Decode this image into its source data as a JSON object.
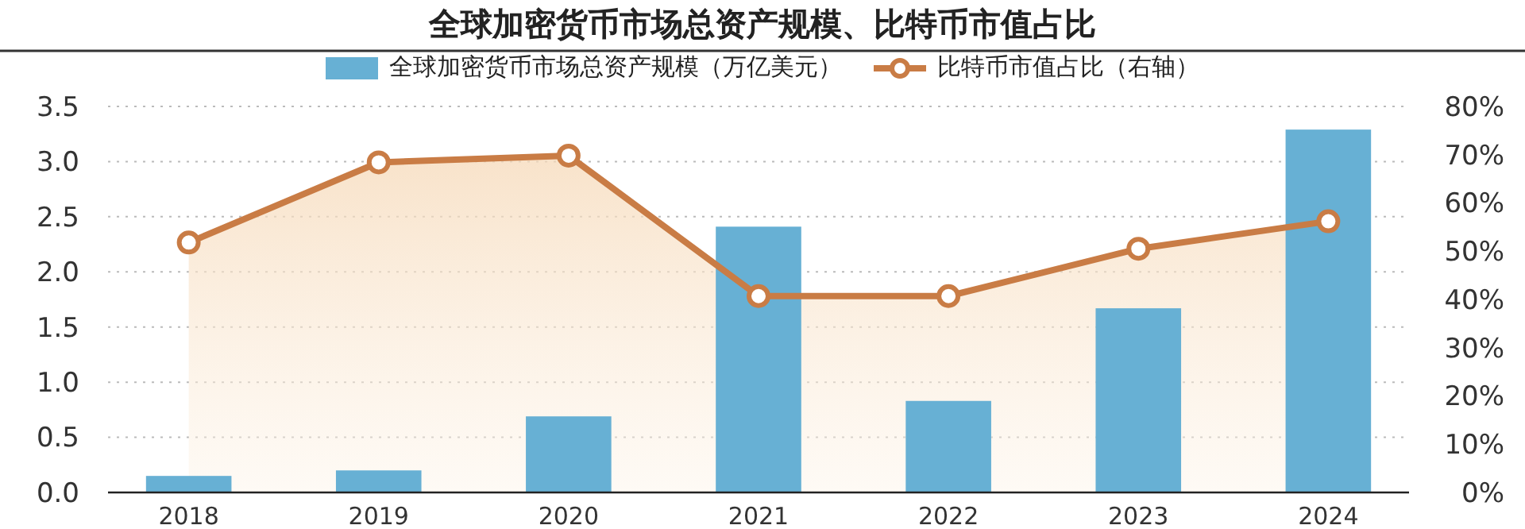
{
  "chart_data": {
    "type": "bar",
    "title": "全球加密货币市场总资产规模、比特币市值占比",
    "categories": [
      "2018",
      "2019",
      "2020",
      "2021",
      "2022",
      "2023",
      "2024"
    ],
    "series": [
      {
        "name": "全球加密货币市场总资产规模（万亿美元）",
        "color": "#67b0d4",
        "values": [
          0.15,
          0.2,
          0.69,
          2.41,
          0.83,
          1.67,
          3.29
        ]
      },
      {
        "name": "比特币市值占比（右轴）",
        "type": "area",
        "axis": "y2",
        "color": "#c97c45",
        "marker": "circle",
        "values": [
          51.8,
          68.4,
          69.8,
          40.7,
          40.7,
          50.5,
          56.2
        ]
      }
    ],
    "ylim": [
      0,
      3.5
    ],
    "yticks": [
      {
        "value": 0,
        "label": "0.0"
      },
      {
        "value": 0.5,
        "label": "0.5"
      },
      {
        "value": 1,
        "label": "1.0"
      },
      {
        "value": 1.5,
        "label": "1.5"
      },
      {
        "value": 2,
        "label": "2.0"
      },
      {
        "value": 2.5,
        "label": "2.5"
      },
      {
        "value": 3,
        "label": "3.0"
      },
      {
        "value": 3.5,
        "label": "3.5"
      }
    ],
    "y2lim": [
      0,
      80
    ],
    "y2ticks": [
      {
        "value": 0,
        "label": "0%"
      },
      {
        "value": 10,
        "label": "10%"
      },
      {
        "value": 20,
        "label": "20%"
      },
      {
        "value": 30,
        "label": "30%"
      },
      {
        "value": 40,
        "label": "40%"
      },
      {
        "value": 50,
        "label": "50%"
      },
      {
        "value": 60,
        "label": "60%"
      },
      {
        "value": 70,
        "label": "70%"
      },
      {
        "value": 80,
        "label": "80%"
      }
    ],
    "grid": "y",
    "legend": "top"
  }
}
